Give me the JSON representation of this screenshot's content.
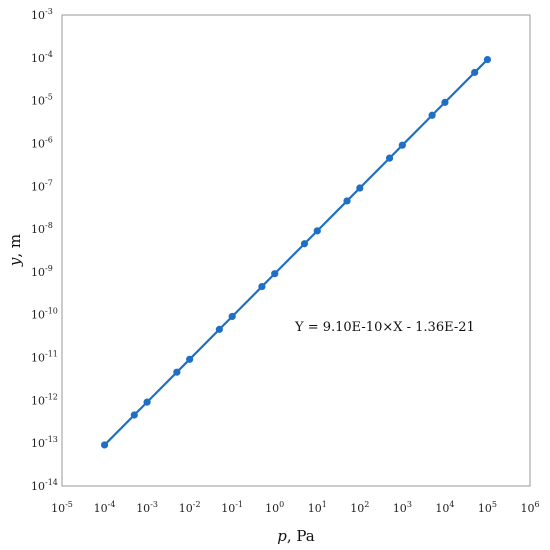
{
  "chart_data": {
    "type": "line",
    "x_scale": "log",
    "y_scale": "log",
    "xlim": [
      1e-05,
      1000000.0
    ],
    "ylim": [
      1e-14,
      0.001
    ],
    "x_ticks": [
      {
        "base": "10",
        "exp": "-5"
      },
      {
        "base": "10",
        "exp": "-4"
      },
      {
        "base": "10",
        "exp": "-3"
      },
      {
        "base": "10",
        "exp": "-2"
      },
      {
        "base": "10",
        "exp": "-1"
      },
      {
        "base": "10",
        "exp": "0"
      },
      {
        "base": "10",
        "exp": "1"
      },
      {
        "base": "10",
        "exp": "2"
      },
      {
        "base": "10",
        "exp": "3"
      },
      {
        "base": "10",
        "exp": "4"
      },
      {
        "base": "10",
        "exp": "5"
      },
      {
        "base": "10",
        "exp": "6"
      }
    ],
    "y_ticks": [
      {
        "base": "10",
        "exp": "-3"
      },
      {
        "base": "10",
        "exp": "-4"
      },
      {
        "base": "10",
        "exp": "-5"
      },
      {
        "base": "10",
        "exp": "-6"
      },
      {
        "base": "10",
        "exp": "-7"
      },
      {
        "base": "10",
        "exp": "-8"
      },
      {
        "base": "10",
        "exp": "-9"
      },
      {
        "base": "10",
        "exp": "-10"
      },
      {
        "base": "10",
        "exp": "-11"
      },
      {
        "base": "10",
        "exp": "-12"
      },
      {
        "base": "10",
        "exp": "-13"
      },
      {
        "base": "10",
        "exp": "-14"
      }
    ],
    "xlabel": {
      "var": "p",
      "unit": ", Pa"
    },
    "ylabel": {
      "var": "y",
      "unit": ", m"
    },
    "annotation": "Y = 9.10E-10×X - 1.36E-21",
    "grid": false,
    "series": [
      {
        "color": "#1f6fc5",
        "points": [
          {
            "x": 0.0001,
            "y": 9.1e-14
          },
          {
            "x": 0.0005,
            "y": 4.55e-13
          },
          {
            "x": 0.001,
            "y": 9.1e-13
          },
          {
            "x": 0.005,
            "y": 4.55e-12
          },
          {
            "x": 0.01,
            "y": 9.1e-12
          },
          {
            "x": 0.05,
            "y": 4.55e-11
          },
          {
            "x": 0.1,
            "y": 9.1e-11
          },
          {
            "x": 0.5,
            "y": 4.55e-10
          },
          {
            "x": 1,
            "y": 9.1e-10
          },
          {
            "x": 5,
            "y": 4.55e-09
          },
          {
            "x": 10,
            "y": 9.1e-09
          },
          {
            "x": 50,
            "y": 4.55e-08
          },
          {
            "x": 100,
            "y": 9.1e-08
          },
          {
            "x": 500,
            "y": 4.55e-07
          },
          {
            "x": 1000,
            "y": 9.1e-07
          },
          {
            "x": 5000,
            "y": 4.55e-06
          },
          {
            "x": 10000,
            "y": 9.1e-06
          },
          {
            "x": 50000,
            "y": 4.55e-05
          },
          {
            "x": 100000,
            "y": 9.1e-05
          }
        ]
      }
    ]
  }
}
